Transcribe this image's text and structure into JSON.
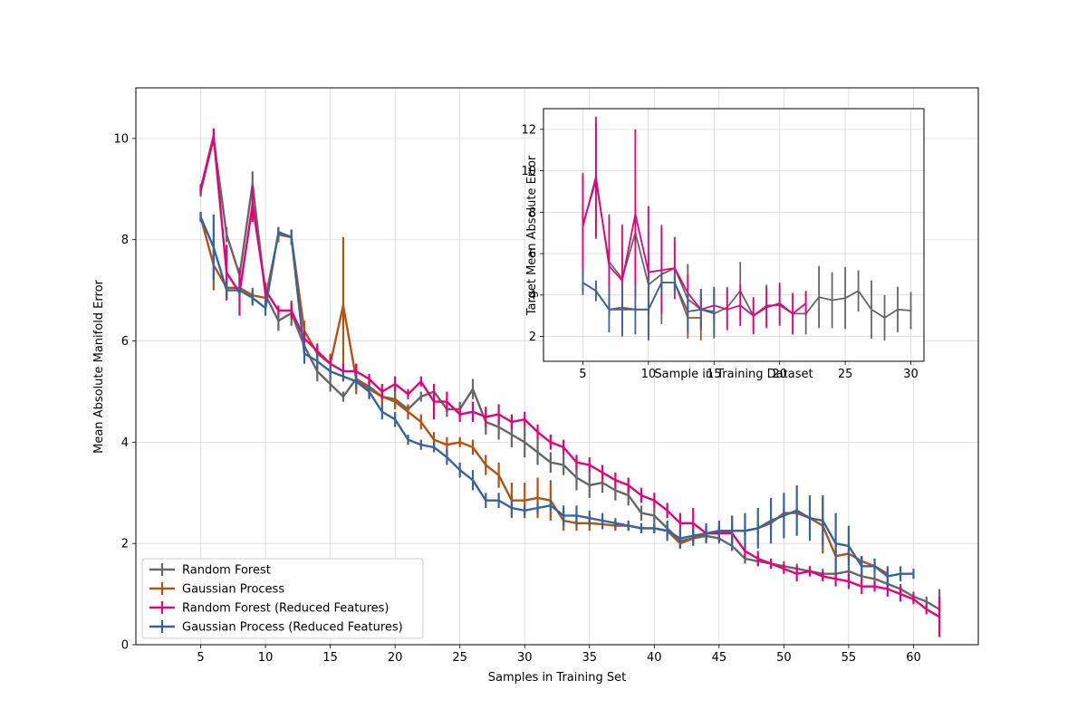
{
  "chart_data": [
    {
      "type": "line",
      "title": "",
      "xlabel": "Samples in Training Set",
      "ylabel": "Mean Absolute Manifold Error",
      "xlim": [
        0,
        65
      ],
      "ylim": [
        0,
        11
      ],
      "xticks": [
        5,
        10,
        15,
        20,
        25,
        30,
        35,
        40,
        45,
        50,
        55,
        60
      ],
      "yticks": [
        0,
        2,
        4,
        6,
        8,
        10
      ],
      "grid": true,
      "legend_position": "lower-left",
      "series": [
        {
          "name": "Random Forest",
          "color": "#666666",
          "x": [
            5,
            6,
            7,
            8,
            9,
            10,
            11,
            12,
            13,
            14,
            15,
            16,
            17,
            18,
            19,
            20,
            21,
            22,
            23,
            24,
            25,
            26,
            27,
            28,
            29,
            30,
            31,
            32,
            33,
            34,
            35,
            36,
            37,
            38,
            39,
            40,
            41,
            42,
            43,
            44,
            45,
            46,
            47,
            48,
            49,
            50,
            51,
            52,
            53,
            54,
            55,
            56,
            57,
            58,
            59,
            60,
            61,
            62
          ],
          "y": [
            8.95,
            10.0,
            8.1,
            7.3,
            9.1,
            6.9,
            6.4,
            6.55,
            5.9,
            5.4,
            5.15,
            4.9,
            5.25,
            5.1,
            4.9,
            4.85,
            4.65,
            4.9,
            5.0,
            4.65,
            4.65,
            5.05,
            4.4,
            4.3,
            4.15,
            4.0,
            3.8,
            3.6,
            3.55,
            3.3,
            3.15,
            3.2,
            3.05,
            2.95,
            2.6,
            2.55,
            2.3,
            2.05,
            2.1,
            2.15,
            2.1,
            1.95,
            1.7,
            1.65,
            1.6,
            1.55,
            1.5,
            1.45,
            1.4,
            1.4,
            1.45,
            1.35,
            1.3,
            1.2,
            1.1,
            0.95,
            0.85,
            0.7
          ],
          "err": [
            0.1,
            0.15,
            0.15,
            0.15,
            0.25,
            0.15,
            0.2,
            0.25,
            0.2,
            0.2,
            0.15,
            0.1,
            0.15,
            0.15,
            0.15,
            0.15,
            0.1,
            0.1,
            0.15,
            0.15,
            0.15,
            0.2,
            0.25,
            0.25,
            0.25,
            0.3,
            0.25,
            0.2,
            0.2,
            0.25,
            0.25,
            0.2,
            0.2,
            0.2,
            0.15,
            0.15,
            0.15,
            0.15,
            0.15,
            0.1,
            0.1,
            0.1,
            0.1,
            0.1,
            0.1,
            0.1,
            0.1,
            0.1,
            0.1,
            0.1,
            0.1,
            0.1,
            0.1,
            0.1,
            0.1,
            0.1,
            0.1,
            0.4
          ]
        },
        {
          "name": "Gaussian Process",
          "color": "#b5520f",
          "x": [
            5,
            6,
            7,
            8,
            9,
            10,
            11,
            12,
            13,
            14,
            15,
            16,
            17,
            18,
            19,
            20,
            21,
            22,
            23,
            24,
            25,
            26,
            27,
            28,
            29,
            30,
            31,
            32,
            33,
            34,
            35,
            36,
            37,
            38,
            39,
            40,
            41,
            42,
            43,
            44,
            45,
            46,
            47,
            48,
            49,
            50,
            51,
            52,
            53,
            54,
            55,
            56,
            57,
            58
          ],
          "y": [
            8.45,
            7.5,
            7.05,
            7.05,
            6.9,
            6.85,
            8.1,
            8.05,
            6.2,
            5.75,
            5.55,
            6.7,
            5.25,
            5.05,
            4.9,
            4.8,
            4.6,
            4.4,
            4.05,
            3.95,
            4.0,
            3.9,
            3.55,
            3.35,
            2.85,
            2.85,
            2.9,
            2.85,
            2.45,
            2.4,
            2.4,
            2.38,
            2.35,
            2.35,
            2.3,
            2.3,
            2.25,
            2.0,
            2.1,
            2.2,
            2.2,
            2.25,
            2.25,
            2.3,
            2.4,
            2.6,
            2.6,
            2.5,
            2.35,
            1.75,
            1.8,
            1.65,
            1.55,
            1.4
          ],
          "err": [
            0.1,
            0.5,
            0.2,
            0.1,
            0.15,
            0.15,
            0.15,
            0.15,
            0.2,
            0.15,
            0.2,
            1.35,
            0.3,
            0.15,
            0.15,
            0.15,
            0.15,
            0.15,
            0.15,
            0.15,
            0.1,
            0.15,
            0.2,
            0.25,
            0.35,
            0.35,
            0.4,
            0.4,
            0.2,
            0.15,
            0.15,
            0.1,
            0.1,
            0.1,
            0.1,
            0.1,
            0.1,
            0.1,
            0.1,
            0.1,
            0.1,
            0.3,
            0.1,
            0.1,
            0.1,
            0.1,
            0.1,
            0.1,
            0.55,
            0.25,
            0.1,
            0.1,
            0.1,
            0.1
          ]
        },
        {
          "name": "Random Forest (Reduced Features)",
          "color": "#e7007a",
          "x": [
            5,
            6,
            7,
            8,
            9,
            10,
            11,
            12,
            13,
            14,
            15,
            16,
            17,
            18,
            19,
            20,
            21,
            22,
            23,
            24,
            25,
            26,
            27,
            28,
            29,
            30,
            31,
            32,
            33,
            34,
            35,
            36,
            37,
            38,
            39,
            40,
            41,
            42,
            43,
            44,
            45,
            46,
            47,
            48,
            49,
            50,
            51,
            52,
            53,
            54,
            55,
            56,
            57,
            58,
            59,
            60,
            61,
            62
          ],
          "y": [
            9.0,
            10.05,
            7.35,
            6.95,
            8.7,
            7.0,
            6.6,
            6.6,
            6.05,
            5.8,
            5.55,
            5.4,
            5.4,
            5.25,
            5.0,
            5.15,
            4.95,
            5.2,
            4.8,
            4.8,
            4.55,
            4.6,
            4.5,
            4.55,
            4.4,
            4.45,
            4.2,
            4.0,
            3.9,
            3.6,
            3.55,
            3.4,
            3.25,
            3.15,
            2.95,
            2.85,
            2.65,
            2.4,
            2.4,
            2.2,
            2.2,
            2.2,
            1.85,
            1.7,
            1.6,
            1.5,
            1.4,
            1.45,
            1.35,
            1.3,
            1.25,
            1.15,
            1.15,
            1.1,
            1.0,
            0.9,
            0.7,
            0.55
          ],
          "err": [
            0.1,
            0.15,
            0.55,
            0.45,
            0.35,
            0.15,
            0.1,
            0.15,
            0.15,
            0.15,
            0.15,
            0.15,
            0.15,
            0.1,
            0.15,
            0.15,
            0.1,
            0.1,
            0.35,
            0.2,
            0.15,
            0.2,
            0.2,
            0.2,
            0.15,
            0.15,
            0.15,
            0.15,
            0.15,
            0.15,
            0.15,
            0.15,
            0.15,
            0.15,
            0.15,
            0.15,
            0.15,
            0.2,
            0.3,
            0.15,
            0.15,
            0.15,
            0.15,
            0.15,
            0.1,
            0.1,
            0.15,
            0.1,
            0.1,
            0.15,
            0.15,
            0.15,
            0.1,
            0.15,
            0.15,
            0.1,
            0.1,
            0.4
          ]
        },
        {
          "name": "Gaussian Process (Reduced Features)",
          "color": "#3464a3",
          "x": [
            5,
            6,
            7,
            8,
            9,
            10,
            11,
            12,
            13,
            14,
            15,
            16,
            17,
            18,
            19,
            20,
            21,
            22,
            23,
            24,
            25,
            26,
            27,
            28,
            29,
            30,
            31,
            32,
            33,
            34,
            35,
            36,
            37,
            38,
            39,
            40,
            41,
            42,
            43,
            44,
            45,
            46,
            47,
            48,
            49,
            50,
            51,
            52,
            53,
            54,
            55,
            56,
            57,
            58,
            59,
            60
          ],
          "y": [
            8.45,
            7.85,
            7.0,
            7.0,
            6.85,
            6.65,
            8.15,
            8.05,
            5.75,
            5.6,
            5.4,
            5.3,
            5.2,
            5.0,
            4.6,
            4.45,
            4.05,
            3.95,
            3.9,
            3.7,
            3.45,
            3.25,
            2.85,
            2.85,
            2.7,
            2.65,
            2.7,
            2.75,
            2.55,
            2.55,
            2.5,
            2.45,
            2.4,
            2.35,
            2.3,
            2.3,
            2.25,
            2.1,
            2.15,
            2.2,
            2.25,
            2.25,
            2.25,
            2.3,
            2.45,
            2.55,
            2.65,
            2.5,
            2.45,
            2.0,
            1.95,
            1.55,
            1.55,
            1.35,
            1.4,
            1.4
          ],
          "err": [
            0.1,
            0.65,
            0.15,
            0.1,
            0.15,
            0.15,
            0.1,
            0.15,
            0.2,
            0.15,
            0.15,
            0.1,
            0.15,
            0.15,
            0.15,
            0.15,
            0.1,
            0.1,
            0.1,
            0.15,
            0.15,
            0.2,
            0.15,
            0.15,
            0.15,
            0.1,
            0.1,
            0.1,
            0.2,
            0.2,
            0.15,
            0.15,
            0.1,
            0.1,
            0.1,
            0.1,
            0.2,
            0.2,
            0.15,
            0.2,
            0.2,
            0.3,
            0.35,
            0.4,
            0.45,
            0.45,
            0.5,
            0.45,
            0.5,
            0.6,
            0.4,
            0.2,
            0.15,
            0.2,
            0.15,
            0.1
          ]
        }
      ]
    },
    {
      "type": "line",
      "title": "",
      "xlabel": "Sample in Training Dataset",
      "ylabel": "Target Mean Absolute Error",
      "xlim": [
        2,
        31
      ],
      "ylim": [
        0.8,
        13
      ],
      "xticks": [
        5,
        10,
        15,
        20,
        25,
        30
      ],
      "yticks": [
        2,
        4,
        6,
        8,
        10,
        12
      ],
      "grid": true,
      "placement": "inset top-right",
      "series": [
        {
          "name": "Random Forest",
          "color": "#666666",
          "x": [
            5,
            6,
            7,
            8,
            9,
            10,
            11,
            12,
            13,
            14,
            15,
            16,
            17,
            18,
            19,
            20,
            21,
            22,
            23,
            24,
            25,
            26,
            27,
            28,
            29,
            30
          ],
          "y": [
            7.4,
            9.5,
            5.6,
            4.8,
            7.0,
            4.5,
            5.0,
            5.3,
            3.8,
            3.3,
            3.1,
            3.4,
            4.2,
            3.0,
            3.5,
            3.5,
            3.1,
            3.1,
            3.9,
            3.75,
            3.85,
            4.2,
            3.3,
            2.9,
            3.3,
            3.25
          ],
          "err": [
            2.5,
            2.8,
            2.3,
            1.5,
            2.5,
            1.5,
            2.4,
            1.2,
            1.7,
            1.0,
            1.2,
            1.0,
            1.4,
            0.8,
            1.0,
            1.0,
            1.0,
            1.0,
            1.5,
            1.35,
            1.5,
            1.0,
            1.4,
            1.1,
            1.1,
            0.9
          ]
        },
        {
          "name": "Gaussian Process",
          "color": "#b5520f",
          "x": [
            5,
            6,
            7,
            8,
            9,
            10,
            11,
            12,
            13,
            14
          ],
          "y": [
            4.6,
            4.2,
            3.3,
            3.4,
            3.3,
            3.3,
            4.6,
            4.6,
            2.9,
            2.9
          ],
          "err": [
            0.5,
            0.4,
            0.3,
            0.2,
            0.2,
            0.2,
            0.3,
            0.3,
            1.0,
            1.1
          ]
        },
        {
          "name": "Random Forest (Reduced Features)",
          "color": "#e7007a",
          "x": [
            5,
            6,
            7,
            8,
            9,
            10,
            11,
            12,
            13,
            14,
            15,
            16,
            17,
            18,
            19,
            20,
            21,
            22
          ],
          "y": [
            7.3,
            9.7,
            5.4,
            4.7,
            7.9,
            5.1,
            5.2,
            5.3,
            4.1,
            3.3,
            3.5,
            3.3,
            3.5,
            3.0,
            3.4,
            3.6,
            3.1,
            3.6
          ],
          "err": [
            2.5,
            2.9,
            2.4,
            2.7,
            4.1,
            3.2,
            2.1,
            1.5,
            0.9,
            0.8,
            0.8,
            1.0,
            1.0,
            0.9,
            1.0,
            1.0,
            1.0,
            0.6
          ]
        },
        {
          "name": "Gaussian Process (Reduced Features)",
          "color": "#3464a3",
          "x": [
            5,
            6,
            7,
            8,
            9,
            10,
            11,
            12,
            13,
            14,
            15
          ],
          "y": [
            4.6,
            4.2,
            3.3,
            3.3,
            3.3,
            3.3,
            4.6,
            4.6,
            3.2,
            3.3,
            3.2
          ],
          "err": [
            0.6,
            0.5,
            1.1,
            1.2,
            1.2,
            1.5,
            0.5,
            0.5,
            1.0,
            1.0,
            1.2
          ]
        }
      ]
    }
  ]
}
